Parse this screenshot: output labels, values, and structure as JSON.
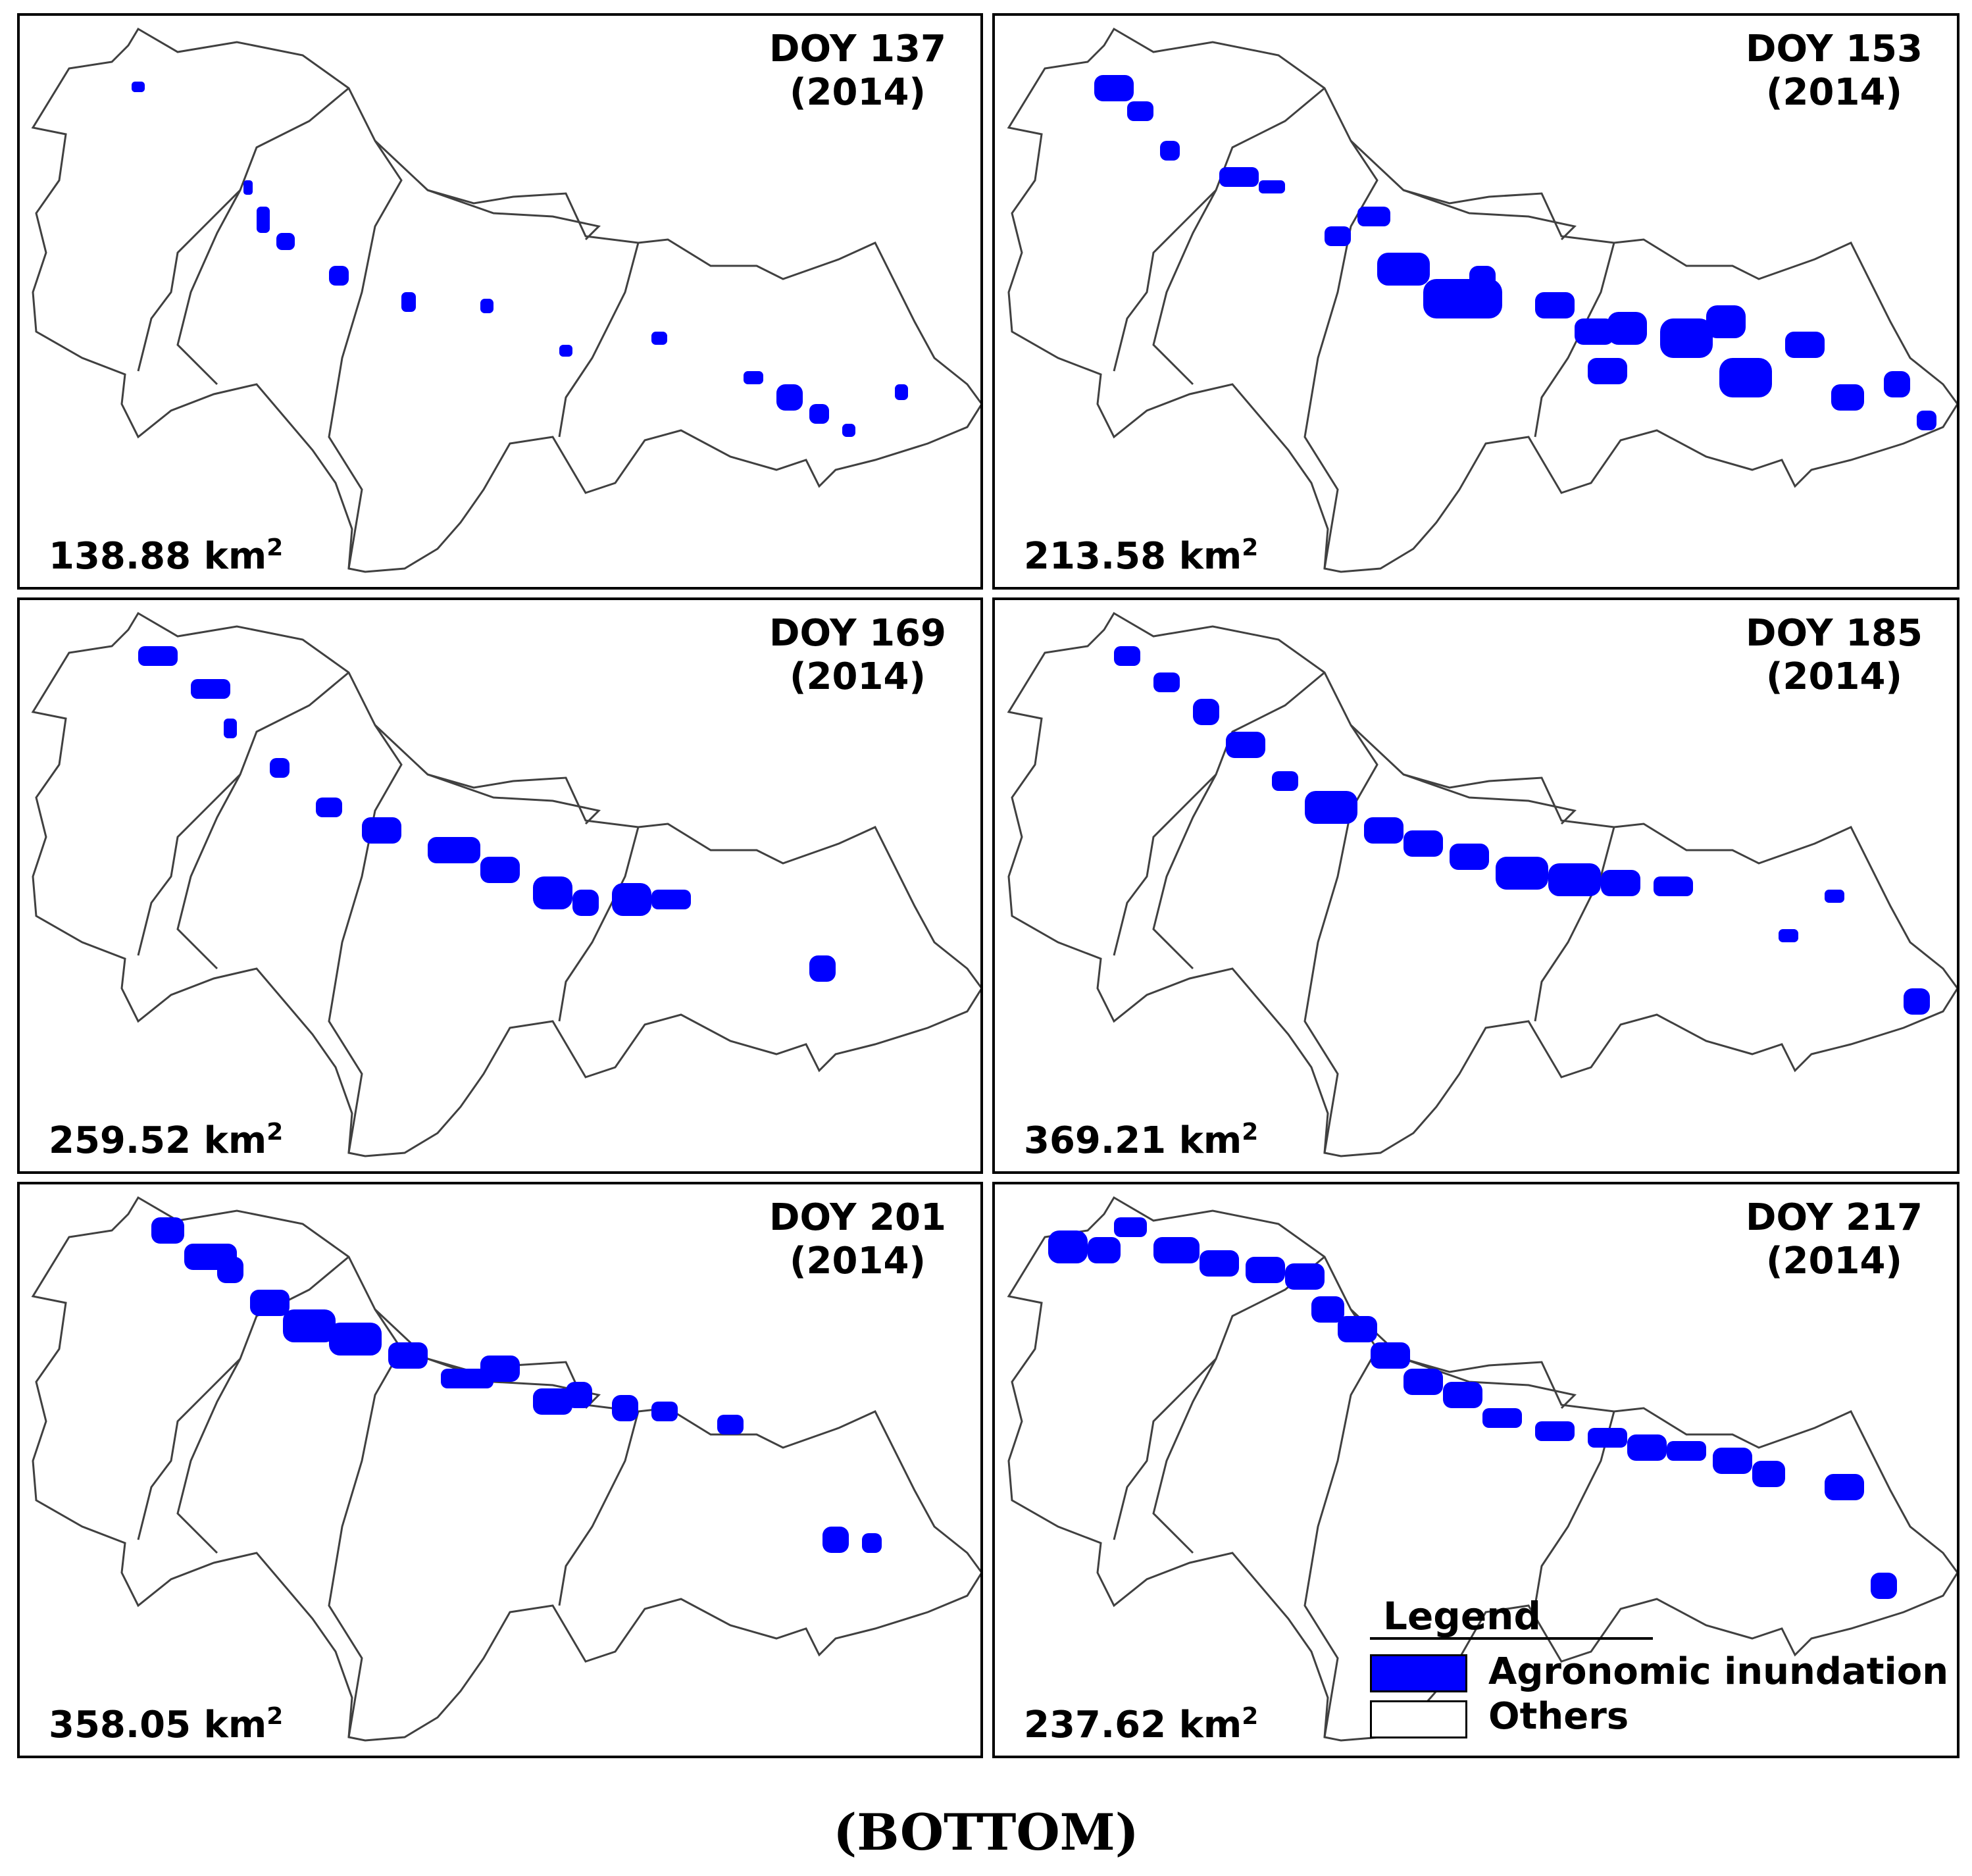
{
  "colors": {
    "inundation": "#0000ff",
    "others": "#ffffff",
    "boundary": "#404040"
  },
  "panels": [
    {
      "doy": "DOY 137",
      "year": "(2014)",
      "area_value": "138.88 km",
      "area_unit_sup": "2"
    },
    {
      "doy": "DOY 153",
      "year": "(2014)",
      "area_value": "213.58 km",
      "area_unit_sup": "2"
    },
    {
      "doy": "DOY 169",
      "year": "(2014)",
      "area_value": "259.52 km",
      "area_unit_sup": "2"
    },
    {
      "doy": "DOY 185",
      "year": "(2014)",
      "area_value": "369.21 km",
      "area_unit_sup": "2"
    },
    {
      "doy": "DOY 201",
      "year": "(2014)",
      "area_value": "358.05 km",
      "area_unit_sup": "2"
    },
    {
      "doy": "DOY 217",
      "year": "(2014)",
      "area_value": "237.62 km",
      "area_unit_sup": "2"
    }
  ],
  "legend": {
    "title": "Legend",
    "items": [
      {
        "label": "Agronomic inundation",
        "color": "#0000ff"
      },
      {
        "label": "Others",
        "color": "#ffffff"
      }
    ]
  },
  "caption": "(BOTTOM)"
}
